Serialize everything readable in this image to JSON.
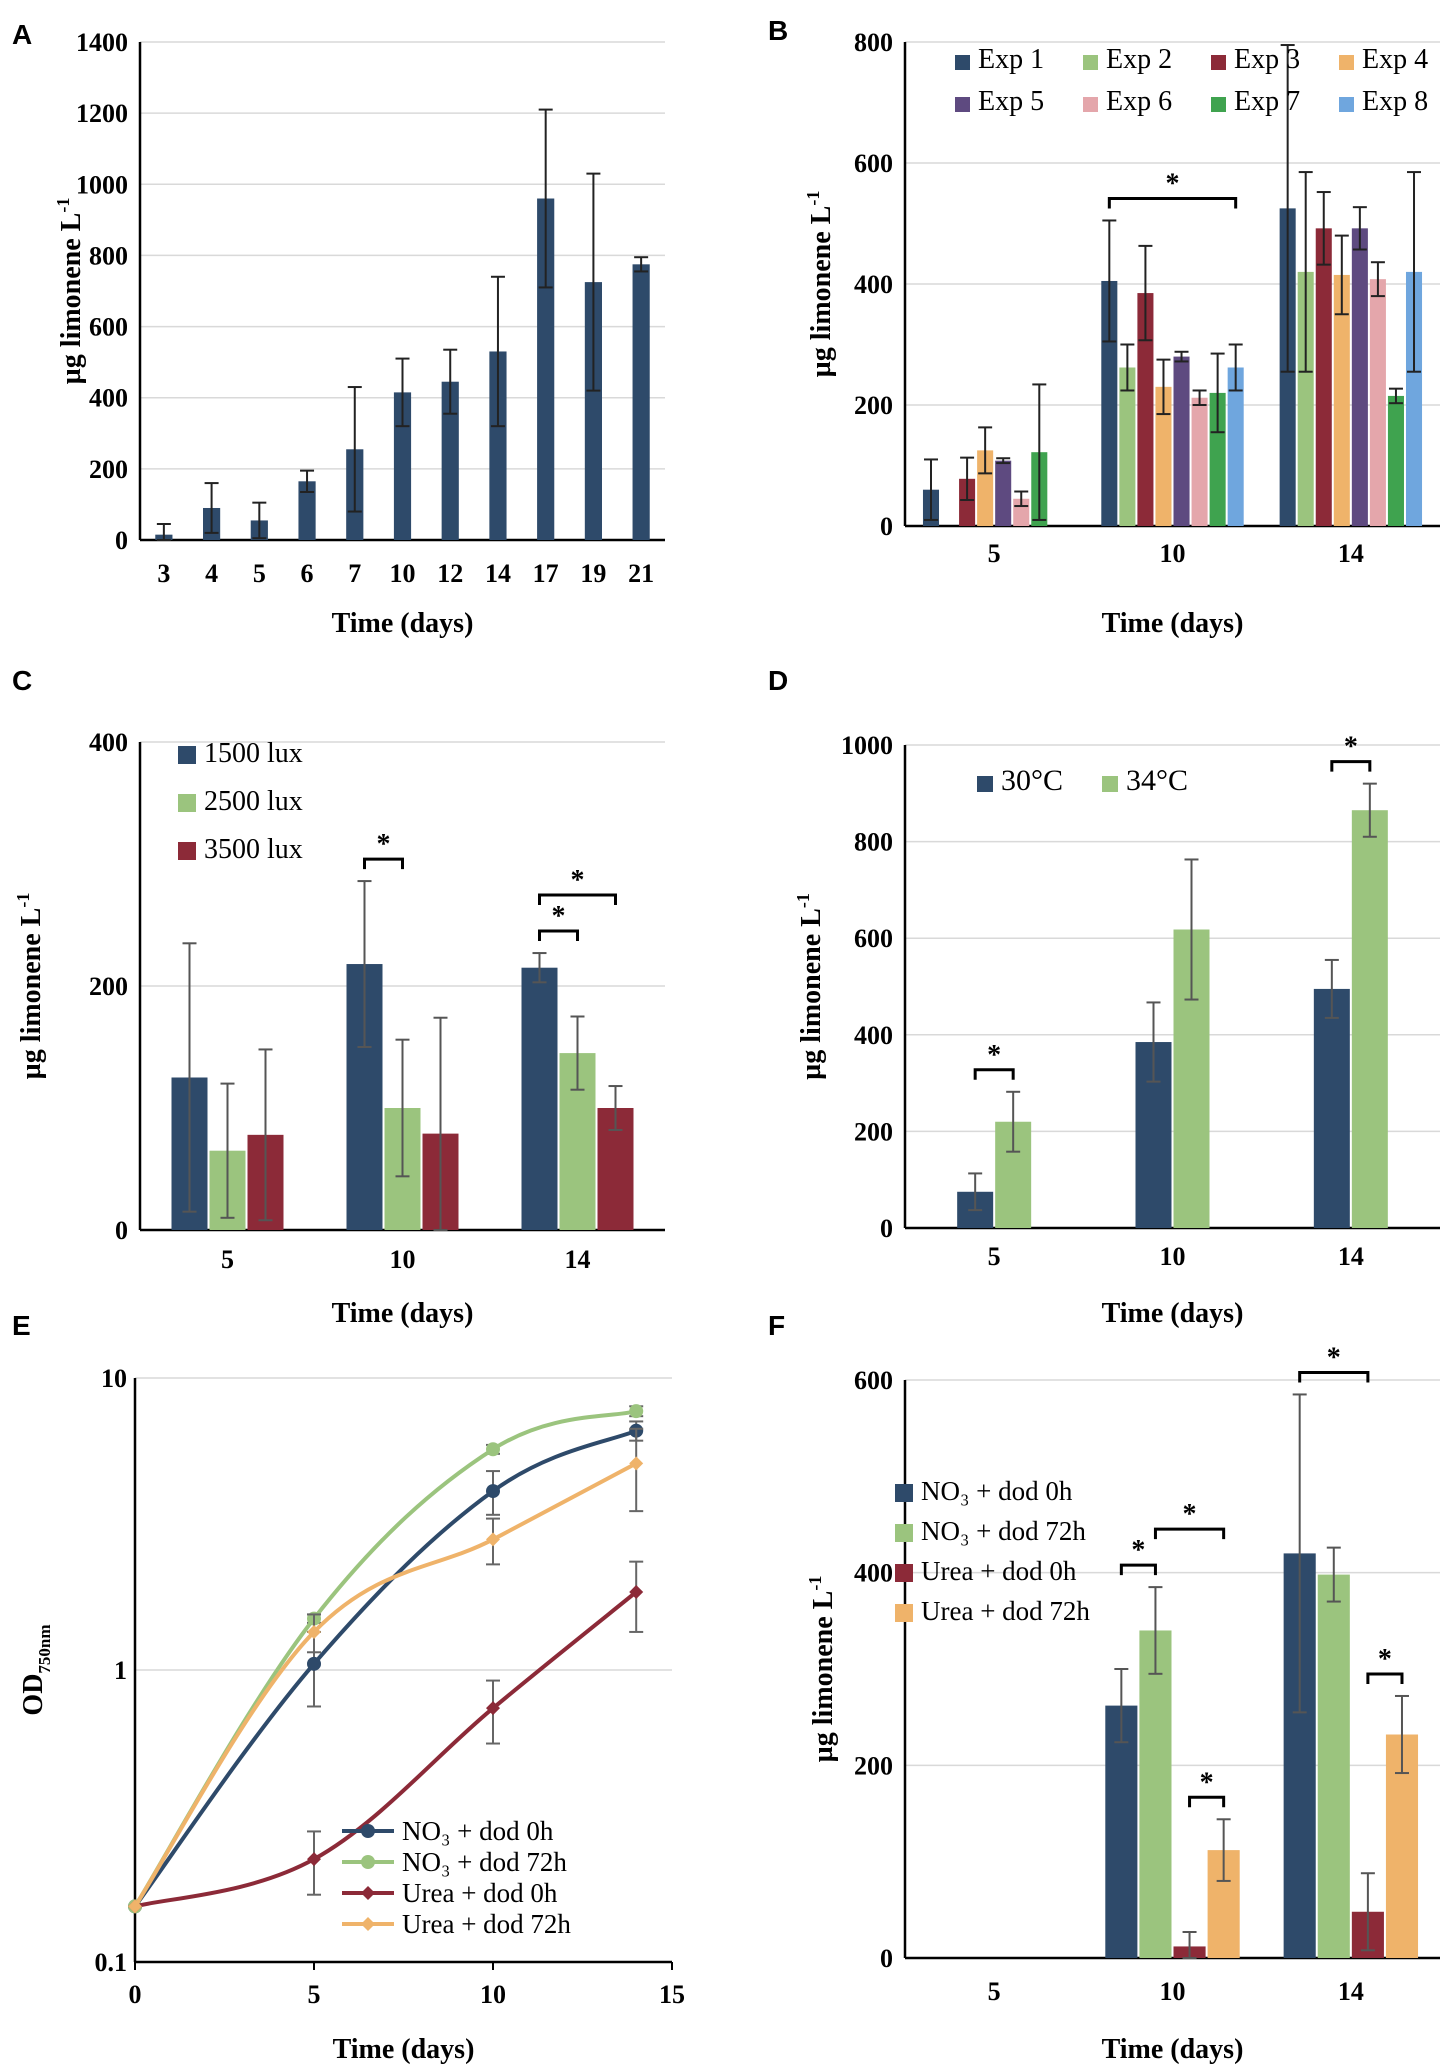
{
  "chart_data": [
    {
      "id": "A",
      "type": "bar",
      "panel_label": "A",
      "xlabel": "Time (days)",
      "ylabel": "µg limonene L",
      "ylabel_sup": "-1",
      "ylim": [
        0,
        1400
      ],
      "yticks": [
        0,
        200,
        400,
        600,
        800,
        1000,
        1200,
        1400
      ],
      "grid": true,
      "show_legend": false,
      "categories": [
        "3",
        "4",
        "5",
        "6",
        "7",
        "10",
        "12",
        "14",
        "17",
        "19",
        "21"
      ],
      "series": [
        {
          "name": "Limonene",
          "color": "#2e4a6a",
          "values": [
            15,
            90,
            55,
            165,
            255,
            415,
            445,
            530,
            960,
            725,
            775
          ],
          "errors": [
            30,
            70,
            50,
            30,
            175,
            95,
            90,
            210,
            250,
            305,
            20
          ]
        }
      ]
    },
    {
      "id": "B",
      "type": "bar",
      "panel_label": "B",
      "xlabel": "Time (days)",
      "ylabel": "µg limonene L",
      "ylabel_sup": "-1",
      "ylim": [
        0,
        800
      ],
      "yticks": [
        0,
        200,
        400,
        600,
        800
      ],
      "grid": true,
      "show_legend": true,
      "legend_position": "top",
      "legend_cols": 4,
      "categories": [
        "5",
        "10",
        "14"
      ],
      "series": [
        {
          "name": "Exp 1",
          "color": "#2e4a6a",
          "values": [
            60,
            405,
            525
          ],
          "errors": [
            50,
            100,
            270
          ]
        },
        {
          "name": "Exp 2",
          "color": "#9bc47e",
          "values": [
            null,
            262,
            420
          ],
          "errors": [
            null,
            38,
            165
          ]
        },
        {
          "name": "Exp 3",
          "color": "#8c2a38",
          "values": [
            78,
            385,
            492
          ],
          "errors": [
            35,
            78,
            60
          ]
        },
        {
          "name": "Exp 4",
          "color": "#efb36a",
          "values": [
            125,
            230,
            415
          ],
          "errors": [
            38,
            45,
            65
          ]
        },
        {
          "name": "Exp 5",
          "color": "#5e4a80",
          "values": [
            108,
            280,
            492
          ],
          "errors": [
            4,
            8,
            35
          ]
        },
        {
          "name": "Exp 6",
          "color": "#e4a6ab",
          "values": [
            45,
            212,
            408
          ],
          "errors": [
            12,
            12,
            28
          ]
        },
        {
          "name": "Exp 7",
          "color": "#3fa34f",
          "values": [
            122,
            220,
            215
          ],
          "errors": [
            112,
            65,
            12
          ]
        },
        {
          "name": "Exp 8",
          "color": "#6fa6de",
          "values": [
            null,
            262,
            420
          ],
          "errors": [
            null,
            38,
            165
          ]
        }
      ],
      "significance": [
        {
          "category": "10",
          "from": "Exp 1",
          "to": "Exp 8",
          "label": "*"
        }
      ]
    },
    {
      "id": "C",
      "type": "bar",
      "panel_label": "C",
      "xlabel": "Time (days)",
      "ylabel": "µg limonene L",
      "ylabel_sup": "-1",
      "ylim": [
        0,
        400
      ],
      "yticks": [
        0,
        200,
        400
      ],
      "grid": true,
      "show_legend": true,
      "legend_position": "top-left",
      "legend_cols": 1,
      "categories": [
        "5",
        "10",
        "14"
      ],
      "series": [
        {
          "name": "1500 lux",
          "color": "#2e4a6a",
          "values": [
            125,
            218,
            215
          ],
          "errors": [
            110,
            68,
            12
          ]
        },
        {
          "name": "2500 lux",
          "color": "#9bc47e",
          "values": [
            65,
            100,
            145
          ],
          "errors": [
            55,
            56,
            30
          ]
        },
        {
          "name": "3500 lux",
          "color": "#8c2a38",
          "values": [
            78,
            79,
            100
          ],
          "errors": [
            70,
            95,
            18
          ]
        }
      ],
      "significance": [
        {
          "category": "10",
          "from": "1500 lux",
          "to": "2500 lux",
          "label": "*"
        },
        {
          "category": "14",
          "from": "1500 lux",
          "to": "2500 lux",
          "label": "*"
        },
        {
          "category": "14",
          "from": "1500 lux",
          "to": "3500 lux",
          "label": "*"
        }
      ]
    },
    {
      "id": "D",
      "type": "bar",
      "panel_label": "D",
      "xlabel": "Time (days)",
      "ylabel": "µg limonene L",
      "ylabel_sup": "-1",
      "ylim": [
        0,
        1000
      ],
      "yticks": [
        0,
        200,
        400,
        600,
        800,
        1000
      ],
      "grid": true,
      "show_legend": true,
      "legend_position": "top-left",
      "legend_cols": 2,
      "categories": [
        "5",
        "10",
        "14"
      ],
      "series": [
        {
          "name": "30°C",
          "color": "#2e4a6a",
          "values": [
            75,
            385,
            495
          ],
          "errors": [
            38,
            82,
            60
          ]
        },
        {
          "name": "34°C",
          "color": "#9bc47e",
          "values": [
            220,
            618,
            865
          ],
          "errors": [
            62,
            145,
            55
          ]
        }
      ],
      "significance": [
        {
          "category": "5",
          "from": "30°C",
          "to": "34°C",
          "label": "*"
        },
        {
          "category": "14",
          "from": "30°C",
          "to": "34°C",
          "label": "*"
        }
      ]
    },
    {
      "id": "E",
      "type": "line",
      "panel_label": "E",
      "xlabel": "Time (days)",
      "ylabel": "OD",
      "ylabel_sub": "750nm",
      "yscale": "log",
      "ylim": [
        0.1,
        10
      ],
      "yticks": [
        0.1,
        1,
        10
      ],
      "ytick_labels": [
        "0.1",
        "1",
        "10"
      ],
      "xlim": [
        0,
        15
      ],
      "xticks": [
        0,
        5,
        10,
        15
      ],
      "grid": true,
      "show_legend": true,
      "legend_position": "bottom-right",
      "series": [
        {
          "name": "NO₃ + dod 0h",
          "color": "#2e4a6a",
          "marker": "circle",
          "x": [
            0,
            5,
            10,
            14
          ],
          "y": [
            0.155,
            1.05,
            4.1,
            6.6
          ],
          "errors": [
            0.004,
            0.3,
            0.7,
            0.5
          ]
        },
        {
          "name": "NO₃ + dod 72h",
          "color": "#9bc47e",
          "marker": "circle",
          "x": [
            0,
            5,
            10,
            14
          ],
          "y": [
            0.155,
            1.5,
            5.7,
            7.7
          ],
          "errors": [
            0.004,
            0.05,
            0.2,
            0.3
          ]
        },
        {
          "name": "Urea + dod 0h",
          "color": "#8c2a38",
          "marker": "diamond",
          "x": [
            0,
            5,
            10,
            14
          ],
          "y": [
            0.155,
            0.225,
            0.74,
            1.85
          ],
          "errors": [
            0.004,
            0.055,
            0.18,
            0.5
          ]
        },
        {
          "name": "Urea + dod 72h",
          "color": "#efb36a",
          "marker": "diamond",
          "x": [
            0,
            5,
            10,
            14
          ],
          "y": [
            0.155,
            1.35,
            2.8,
            5.1
          ],
          "errors": [
            0.004,
            0.2,
            0.5,
            1.6
          ]
        }
      ]
    },
    {
      "id": "F",
      "type": "bar",
      "panel_label": "F",
      "xlabel": "Time (days)",
      "ylabel": "µg limonene L",
      "ylabel_sup": "-1",
      "ylim": [
        0,
        600
      ],
      "yticks": [
        0,
        200,
        400,
        600
      ],
      "grid": true,
      "show_legend": true,
      "legend_position": "top-left",
      "legend_cols": 1,
      "categories": [
        "5",
        "10",
        "14"
      ],
      "series": [
        {
          "name": "NO₃ + dod 0h",
          "color": "#2e4a6a",
          "values": [
            null,
            262,
            420
          ],
          "errors": [
            null,
            38,
            165
          ]
        },
        {
          "name": "NO₃ + dod 72h",
          "color": "#9bc47e",
          "values": [
            null,
            340,
            398
          ],
          "errors": [
            null,
            45,
            28
          ]
        },
        {
          "name": "Urea + dod 0h",
          "color": "#8c2a38",
          "values": [
            null,
            12,
            48
          ],
          "errors": [
            null,
            15,
            40
          ]
        },
        {
          "name": "Urea + dod 72h",
          "color": "#efb36a",
          "values": [
            null,
            112,
            232
          ],
          "errors": [
            null,
            32,
            40
          ]
        }
      ],
      "significance": [
        {
          "category": "10",
          "from": "NO₃ + dod 0h",
          "to": "NO₃ + dod 72h",
          "label": "*"
        },
        {
          "category": "10",
          "from": "NO₃ + dod 72h",
          "to": "Urea + dod 72h",
          "label": "*"
        },
        {
          "category": "10",
          "from": "Urea + dod 0h",
          "to": "Urea + dod 72h",
          "label": "*"
        },
        {
          "category": "14",
          "from": "NO₃ + dod 0h",
          "to": "Urea + dod 0h",
          "label": "*"
        },
        {
          "category": "14",
          "from": "Urea + dod 0h",
          "to": "Urea + dod 72h",
          "label": "*"
        }
      ]
    }
  ]
}
